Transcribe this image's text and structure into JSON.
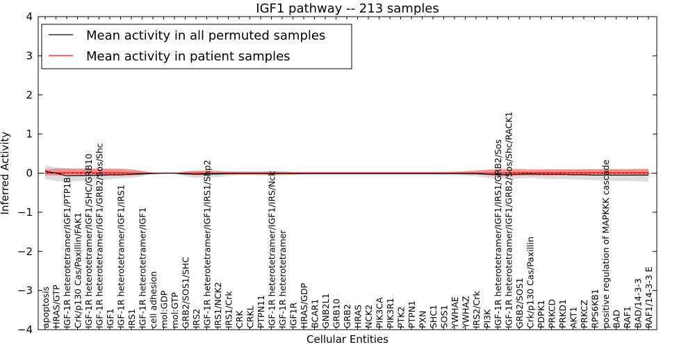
{
  "chart_data": {
    "type": "line",
    "title": "IGF1 pathway -- 213 samples",
    "xlabel": "Cellular Entities",
    "ylabel": "Inferred Activity",
    "ylim": [
      -4,
      4
    ],
    "yticks": [
      4,
      3,
      2,
      1,
      0,
      -1,
      -2,
      -3,
      -4
    ],
    "ytick_labels": [
      "4",
      "3",
      "2",
      "1",
      "0",
      "−1",
      "−2",
      "−3",
      "−4"
    ],
    "legend": {
      "placement": "top-left",
      "entries": [
        {
          "label": "Mean activity in all permuted samples",
          "color": "#000000"
        },
        {
          "label": "Mean activity in patient samples",
          "color": "#ff0000"
        }
      ]
    },
    "categories": [
      "apoptosis",
      "HRAS/GTP",
      "IGF-1R heterotetramer/IGF1/PTP1B",
      "Crk/p130 Cas/Paxillin/FAK1",
      "IGF-1R heterotetramer/IGF1/SHC/GRB10",
      "IGF-1R heterotetramer/IGF1/GRB2/Sos/Shc",
      "IGF1",
      "IGF-1R heterotetramer/IGF1/IRS1",
      "IRS1",
      "IGF-1R heterotetramer/IGF1",
      "cell adhesion",
      "mol:GDP",
      "mol:GTP",
      "GRB2/SOS1/SHC",
      "IRS2",
      "IGF-1R heterotetramer/IGF1/IRS1/Shp2",
      "IRS1/NCK2",
      "IRS1/Crk",
      "CRK",
      "CRKL",
      "PTPN11",
      "IGF-1R heterotetramer/IGF1/IRS/Nck",
      "IGF-1R heterotetramer",
      "IGF1R",
      "HRAS/GDP",
      "BCAR1",
      "GNB2L1",
      "GRB10",
      "GRB2",
      "HRAS",
      "NCK2",
      "PIK3CA",
      "PIK3R1",
      "PTK2",
      "PTPN1",
      "PXN",
      "SHC1",
      "SOS1",
      "YWHAE",
      "YWHAZ",
      "IRS2/Crk",
      "PI3K",
      "IGF-1R heterotetramer/IGF1/IRS1/GRB2/Sos",
      "IGF-1R heterotetramer/IGF1/GRB2/Sos/Shc/RACK1",
      "GRB2/SOS1",
      "Crk/p130 Cas/Paxillin",
      "PDPK1",
      "PRKCD",
      "PRKD1",
      "AKT1",
      "PRKCZ",
      "RPS6KB1",
      "positive regulation of MAPKKK cascade",
      "BAD",
      "RAF1",
      "BAD/14-3-3",
      "RAF1/14-3-3 E"
    ],
    "series": [
      {
        "name": "Mean activity in all permuted samples",
        "color": "#000000",
        "values": [
          0.05,
          0.0,
          -0.07,
          -0.06,
          -0.06,
          -0.05,
          -0.04,
          -0.04,
          -0.03,
          -0.02,
          -0.01,
          0.0,
          0.0,
          -0.02,
          -0.03,
          -0.02,
          -0.02,
          -0.01,
          -0.01,
          -0.01,
          -0.01,
          -0.01,
          -0.01,
          -0.01,
          -0.01,
          -0.01,
          -0.01,
          -0.01,
          -0.01,
          -0.01,
          -0.01,
          -0.01,
          -0.01,
          -0.01,
          -0.01,
          -0.01,
          -0.01,
          -0.01,
          -0.01,
          -0.01,
          -0.01,
          -0.03,
          -0.04,
          -0.04,
          -0.03,
          -0.02,
          -0.03,
          -0.03,
          -0.03,
          -0.04,
          -0.04,
          -0.05,
          -0.05,
          -0.05,
          -0.05,
          -0.05,
          -0.05
        ],
        "band": {
          "lower": [
            -0.15,
            -0.2,
            -0.22,
            -0.2,
            -0.2,
            -0.18,
            -0.16,
            -0.14,
            -0.12,
            -0.08,
            -0.02,
            -0.01,
            -0.01,
            -0.08,
            -0.12,
            -0.12,
            -0.1,
            -0.07,
            -0.05,
            -0.05,
            -0.06,
            -0.07,
            -0.06,
            -0.05,
            -0.04,
            -0.04,
            -0.04,
            -0.04,
            -0.04,
            -0.04,
            -0.04,
            -0.04,
            -0.04,
            -0.04,
            -0.04,
            -0.04,
            -0.04,
            -0.05,
            -0.05,
            -0.06,
            -0.08,
            -0.12,
            -0.15,
            -0.15,
            -0.14,
            -0.12,
            -0.14,
            -0.15,
            -0.15,
            -0.16,
            -0.17,
            -0.18,
            -0.19,
            -0.2,
            -0.2,
            -0.21,
            -0.22
          ],
          "upper": [
            0.2,
            0.15,
            0.12,
            0.11,
            0.1,
            0.1,
            0.1,
            0.09,
            0.08,
            0.05,
            0.02,
            0.01,
            0.01,
            0.05,
            0.07,
            0.07,
            0.06,
            0.05,
            0.04,
            0.04,
            0.04,
            0.05,
            0.04,
            0.03,
            0.03,
            0.03,
            0.03,
            0.03,
            0.03,
            0.03,
            0.03,
            0.03,
            0.03,
            0.03,
            0.03,
            0.03,
            0.03,
            0.03,
            0.03,
            0.04,
            0.05,
            0.07,
            0.08,
            0.08,
            0.08,
            0.07,
            0.08,
            0.09,
            0.09,
            0.09,
            0.1,
            0.1,
            0.11,
            0.11,
            0.11,
            0.12,
            0.12
          ]
        }
      },
      {
        "name": "Mean activity in patient samples",
        "color": "#ff0000",
        "values": [
          0.01,
          0.01,
          0.01,
          0.01,
          0.01,
          0.01,
          0.01,
          0.01,
          0.0,
          0.0,
          0.0,
          0.0,
          0.0,
          0.0,
          0.0,
          0.0,
          0.0,
          0.0,
          0.0,
          0.0,
          0.0,
          0.0,
          0.0,
          0.0,
          0.0,
          0.0,
          0.0,
          0.0,
          0.0,
          0.0,
          0.0,
          0.0,
          0.0,
          0.0,
          0.0,
          0.0,
          0.0,
          0.0,
          0.0,
          0.0,
          0.0,
          0.0,
          0.0,
          0.01,
          0.01,
          0.01,
          0.01,
          0.01,
          0.01,
          0.01,
          0.01,
          0.01,
          0.01,
          0.01,
          0.01,
          0.01,
          0.01
        ],
        "band": {
          "lower": [
            -0.06,
            -0.06,
            -0.06,
            -0.06,
            -0.06,
            -0.07,
            -0.07,
            -0.07,
            -0.06,
            -0.04,
            -0.01,
            0.0,
            0.0,
            -0.03,
            -0.05,
            -0.05,
            -0.04,
            -0.03,
            -0.03,
            -0.03,
            -0.03,
            -0.04,
            -0.03,
            -0.03,
            -0.02,
            -0.02,
            -0.02,
            -0.02,
            -0.02,
            -0.02,
            -0.02,
            -0.02,
            -0.02,
            -0.02,
            -0.02,
            -0.02,
            -0.02,
            -0.02,
            -0.02,
            -0.03,
            -0.04,
            -0.05,
            -0.07,
            -0.07,
            -0.06,
            -0.06,
            -0.06,
            -0.06,
            -0.06,
            -0.06,
            -0.06,
            -0.06,
            -0.06,
            -0.06,
            -0.06,
            -0.06,
            -0.06
          ],
          "upper": [
            0.1,
            0.12,
            0.12,
            0.12,
            0.12,
            0.12,
            0.12,
            0.12,
            0.1,
            0.06,
            0.01,
            0.0,
            0.0,
            0.04,
            0.06,
            0.06,
            0.05,
            0.04,
            0.04,
            0.04,
            0.04,
            0.05,
            0.04,
            0.03,
            0.03,
            0.03,
            0.03,
            0.03,
            0.03,
            0.03,
            0.03,
            0.03,
            0.03,
            0.03,
            0.03,
            0.03,
            0.03,
            0.03,
            0.04,
            0.05,
            0.07,
            0.09,
            0.11,
            0.11,
            0.11,
            0.1,
            0.1,
            0.1,
            0.1,
            0.1,
            0.1,
            0.1,
            0.1,
            0.1,
            0.1,
            0.1,
            0.1
          ]
        }
      }
    ]
  }
}
